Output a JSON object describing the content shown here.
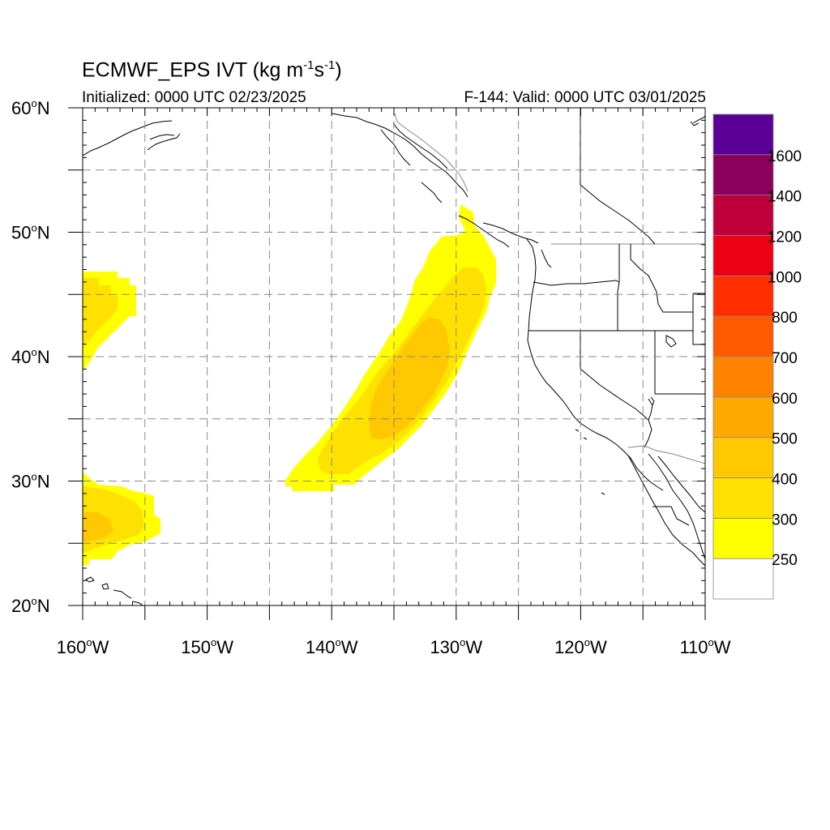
{
  "title": {
    "main": "ECMWF_EPS IVT (kg m",
    "sup1": "-1",
    "mid": "s",
    "sup2": "-1",
    "end": ")"
  },
  "subtitle": {
    "initialized": "Initialized: 0000 UTC 02/23/2025",
    "valid": "F-144: Valid: 0000 UTC 03/01/2025"
  },
  "map": {
    "lon_range": [
      -160,
      -110
    ],
    "lat_range": [
      20,
      60
    ],
    "grid": true,
    "lat_labels": [
      {
        "lat": 60,
        "deg": "60",
        "hem": "N"
      },
      {
        "lat": 50,
        "deg": "50",
        "hem": "N"
      },
      {
        "lat": 40,
        "deg": "40",
        "hem": "N"
      },
      {
        "lat": 30,
        "deg": "30",
        "hem": "N"
      },
      {
        "lat": 20,
        "deg": "20",
        "hem": "N"
      }
    ],
    "lon_labels": [
      {
        "lon": -160,
        "deg": "160",
        "hem": "W"
      },
      {
        "lon": -150,
        "deg": "150",
        "hem": "W"
      },
      {
        "lon": -140,
        "deg": "140",
        "hem": "W"
      },
      {
        "lon": -130,
        "deg": "130",
        "hem": "W"
      },
      {
        "lon": -120,
        "deg": "120",
        "hem": "W"
      },
      {
        "lon": -110,
        "deg": "110",
        "hem": "W"
      }
    ]
  },
  "colorbar": {
    "levels": [
      "250",
      "300",
      "400",
      "500",
      "600",
      "700",
      "800",
      "1000",
      "1200",
      "1400",
      "1600"
    ],
    "colors": [
      "#ffffff",
      "#ffff00",
      "#ffe100",
      "#ffc800",
      "#ffaa00",
      "#ff8200",
      "#ff5a00",
      "#ff2d00",
      "#ee0014",
      "#c0003c",
      "#8a005a",
      "#5a0096"
    ]
  }
}
